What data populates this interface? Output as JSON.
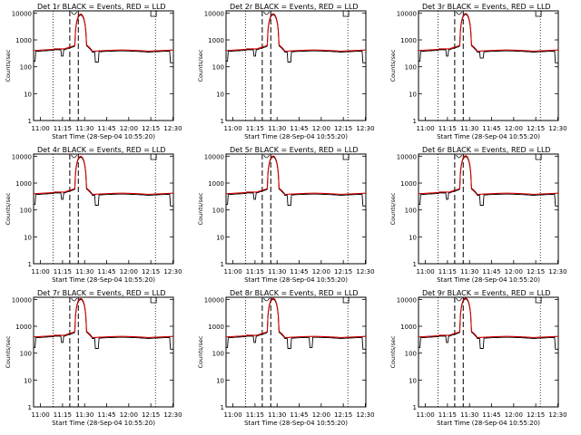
{
  "chart_data": [
    {
      "type": "line",
      "title": "Det 1r BLACK = Events, RED = LLD",
      "ylabel": "Counts/sec",
      "xlabel": "Start Time (28-Sep-04 10:55:20)",
      "xticks": [
        "11:00",
        "11:15",
        "11:30",
        "11:45",
        "12:00",
        "12:15",
        "12:30"
      ],
      "yticks": [
        "1",
        "10",
        "100",
        "1000",
        "10000"
      ],
      "ylim": [
        1,
        12000
      ],
      "yscale": "log",
      "series": [
        {
          "color": "#000000"
        },
        {
          "color": "#d00000"
        }
      ]
    },
    {
      "type": "line",
      "title": "Det 2r BLACK = Events, RED = LLD",
      "ylabel": "Counts/sec",
      "xlabel": "Start Time (28-Sep-04 10:55:20)",
      "xticks": [
        "11:00",
        "11:15",
        "11:30",
        "11:45",
        "12:00",
        "12:15",
        "12:30"
      ],
      "yticks": [
        "1",
        "10",
        "100",
        "1000",
        "10000"
      ],
      "ylim": [
        1,
        12000
      ],
      "yscale": "log",
      "series": [
        {
          "color": "#000000"
        },
        {
          "color": "#d00000"
        }
      ]
    },
    {
      "type": "line",
      "title": "Det 3r BLACK = Events, RED = LLD",
      "ylabel": "Counts/sec",
      "xlabel": "Start Time (28-Sep-04 10:55:20)",
      "xticks": [
        "11:00",
        "11:15",
        "11:30",
        "11:45",
        "12:00",
        "12:15",
        "12:30"
      ],
      "yticks": [
        "1",
        "10",
        "100",
        "1000",
        "10000"
      ],
      "ylim": [
        1,
        12000
      ],
      "yscale": "log",
      "series": [
        {
          "color": "#000000"
        },
        {
          "color": "#d00000"
        }
      ]
    },
    {
      "type": "line",
      "title": "Det 4r BLACK = Events, RED = LLD",
      "ylabel": "Counts/sec",
      "xlabel": "Start Time (28-Sep-04 10:55:20)",
      "xticks": [
        "11:00",
        "11:15",
        "11:30",
        "11:45",
        "12:00",
        "12:15",
        "12:30"
      ],
      "yticks": [
        "1",
        "10",
        "100",
        "1000",
        "10000"
      ],
      "ylim": [
        1,
        12000
      ],
      "yscale": "log",
      "series": [
        {
          "color": "#000000"
        },
        {
          "color": "#d00000"
        }
      ]
    },
    {
      "type": "line",
      "title": "Det 5r BLACK = Events, RED = LLD",
      "ylabel": "Counts/sec",
      "xlabel": "Start Time (28-Sep-04 10:55:20)",
      "xticks": [
        "11:00",
        "11:15",
        "11:30",
        "11:45",
        "12:00",
        "12:15",
        "12:30"
      ],
      "yticks": [
        "1",
        "10",
        "100",
        "1000",
        "10000"
      ],
      "ylim": [
        1,
        12000
      ],
      "yscale": "log",
      "series": [
        {
          "color": "#000000"
        },
        {
          "color": "#d00000"
        }
      ]
    },
    {
      "type": "line",
      "title": "Det 6r BLACK = Events, RED = LLD",
      "ylabel": "Counts/sec",
      "xlabel": "Start Time (28-Sep-04 10:55:20)",
      "xticks": [
        "11:00",
        "11:15",
        "11:30",
        "11:45",
        "12:00",
        "12:15",
        "12:30"
      ],
      "yticks": [
        "1",
        "10",
        "100",
        "1000",
        "10000"
      ],
      "ylim": [
        1,
        12000
      ],
      "yscale": "log",
      "series": [
        {
          "color": "#000000"
        },
        {
          "color": "#d00000"
        }
      ]
    },
    {
      "type": "line",
      "title": "Det 7r BLACK = Events, RED = LLD",
      "ylabel": "Counts/sec",
      "xlabel": "Start Time (28-Sep-04 10:55:20)",
      "xticks": [
        "11:00",
        "11:15",
        "11:30",
        "11:45",
        "12:00",
        "12:15",
        "12:30"
      ],
      "yticks": [
        "1",
        "10",
        "100",
        "1000",
        "10000"
      ],
      "ylim": [
        1,
        12000
      ],
      "yscale": "log",
      "series": [
        {
          "color": "#000000"
        },
        {
          "color": "#d00000"
        }
      ]
    },
    {
      "type": "line",
      "title": "Det 8r BLACK = Events, RED = LLD",
      "ylabel": "Counts/sec",
      "xlabel": "Start Time (28-Sep-04 10:55:20)",
      "xticks": [
        "11:00",
        "11:15",
        "11:30",
        "11:45",
        "12:00",
        "12:15",
        "12:30"
      ],
      "yticks": [
        "1",
        "10",
        "100",
        "1000",
        "10000"
      ],
      "ylim": [
        1,
        12000
      ],
      "yscale": "log",
      "series": [
        {
          "color": "#000000"
        },
        {
          "color": "#d00000"
        }
      ]
    },
    {
      "type": "line",
      "title": "Det 9r BLACK = Events, RED = LLD",
      "ylabel": "Counts/sec",
      "xlabel": "Start Time (28-Sep-04 10:55:20)",
      "xticks": [
        "11:00",
        "11:15",
        "11:30",
        "11:45",
        "12:00",
        "12:15",
        "12:30"
      ],
      "yticks": [
        "1",
        "10",
        "100",
        "1000",
        "10000"
      ],
      "ylim": [
        1,
        12000
      ],
      "yscale": "log",
      "series": [
        {
          "color": "#000000"
        },
        {
          "color": "#d00000"
        }
      ]
    }
  ]
}
